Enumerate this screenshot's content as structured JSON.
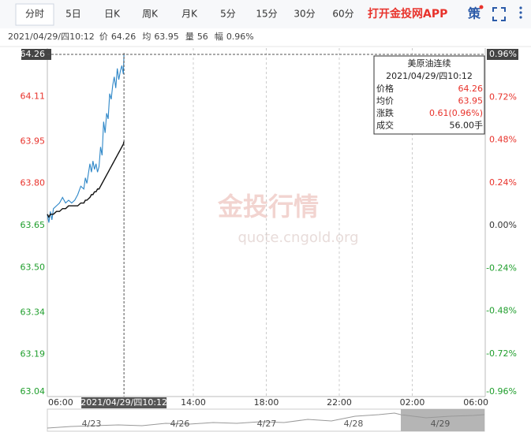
{
  "tabs": [
    "分时",
    "5日",
    "日K",
    "周K",
    "月K",
    "5分",
    "15分",
    "30分",
    "60分"
  ],
  "app_link": "打开金投网APP",
  "strategy": "策",
  "info": {
    "time": "2021/04/29/四10:12",
    "items": [
      [
        "价",
        "64.26"
      ],
      [
        "均",
        "63.95"
      ],
      [
        "量",
        "56"
      ],
      [
        "幅",
        "0.96%"
      ]
    ]
  },
  "watermark": {
    "brand": "金投行情",
    "site": "quote.cngold.org"
  },
  "tooltip": {
    "title": "美原油连续",
    "time": "2021/04/29/四10:12",
    "rows": [
      [
        "价格",
        "64.26"
      ],
      [
        "均价",
        "63.95"
      ],
      [
        "涨跌",
        "0.61(0.96%)"
      ],
      [
        "成交",
        "56.00手"
      ]
    ]
  },
  "navigator": {
    "dates": [
      "4/23",
      "4/26",
      "4/27",
      "4/28",
      "4/29"
    ]
  },
  "chart_data": {
    "type": "line",
    "x": [
      "06:00",
      "06:05",
      "06:10",
      "06:15",
      "06:20",
      "06:30",
      "06:40",
      "06:50",
      "07:00",
      "07:10",
      "07:20",
      "07:30",
      "07:40",
      "07:50",
      "08:00",
      "08:05",
      "08:10",
      "08:20",
      "08:25",
      "08:30",
      "08:35",
      "08:40",
      "08:45",
      "08:50",
      "08:55",
      "09:00",
      "09:05",
      "09:10",
      "09:15",
      "09:20",
      "09:25",
      "09:30",
      "09:35",
      "09:40",
      "09:45",
      "09:50",
      "09:55",
      "10:00",
      "10:05",
      "10:10",
      "10:12"
    ],
    "series": [
      {
        "name": "价",
        "color": "#2e87c8",
        "values": [
          63.69,
          63.66,
          63.7,
          63.67,
          63.71,
          63.72,
          63.73,
          63.75,
          63.73,
          63.74,
          63.73,
          63.74,
          63.76,
          63.79,
          63.78,
          63.82,
          63.8,
          63.87,
          63.84,
          63.88,
          63.85,
          63.87,
          63.84,
          63.86,
          63.93,
          63.9,
          64.02,
          63.98,
          64.05,
          64.03,
          64.12,
          64.1,
          64.15,
          64.18,
          64.14,
          64.21,
          64.17,
          64.2,
          64.22,
          64.19,
          64.26
        ]
      },
      {
        "name": "均",
        "color": "#111111",
        "values": [
          63.69,
          63.68,
          63.69,
          63.69,
          63.69,
          63.7,
          63.7,
          63.71,
          63.71,
          63.72,
          63.72,
          63.72,
          63.72,
          63.73,
          63.73,
          63.74,
          63.74,
          63.75,
          63.76,
          63.76,
          63.77,
          63.77,
          63.78,
          63.78,
          63.79,
          63.8,
          63.81,
          63.82,
          63.83,
          63.84,
          63.85,
          63.86,
          63.87,
          63.88,
          63.89,
          63.9,
          63.91,
          63.92,
          63.93,
          63.94,
          63.95
        ]
      }
    ],
    "xlim": [
      "06:00",
      "06:00"
    ],
    "xticks": [
      "06:00",
      "14:00",
      "18:00",
      "22:00",
      "02:00",
      "06:00"
    ],
    "ylim": [
      63.04,
      64.26
    ],
    "yticks": [
      64.26,
      64.11,
      63.95,
      {
        "value": 63.8,
        "label": "63.80"
      },
      63.65,
      {
        "value": 63.5,
        "label": "63.50"
      },
      63.34,
      63.19,
      63.04
    ],
    "y2lim": [
      -0.96,
      0.96
    ],
    "y2ticks": [
      {
        "value": 0.96,
        "label": "0.96%"
      },
      {
        "value": 0.72,
        "label": "0.72%"
      },
      {
        "value": 0.48,
        "label": "0.48%"
      },
      {
        "value": 0.24,
        "label": "0.24%"
      },
      {
        "value": 0,
        "label": "0.00%"
      },
      {
        "value": -0.24,
        "label": "-0.24%"
      },
      {
        "value": -0.48,
        "label": "-0.48%"
      },
      {
        "value": -0.72,
        "label": "-0.72%"
      },
      {
        "value": -0.96,
        "label": "-0.96%"
      }
    ],
    "up_color": "#e8322b",
    "down_color": "#1f9e2c",
    "cursor_label": "2021/04/29/四10:12"
  }
}
